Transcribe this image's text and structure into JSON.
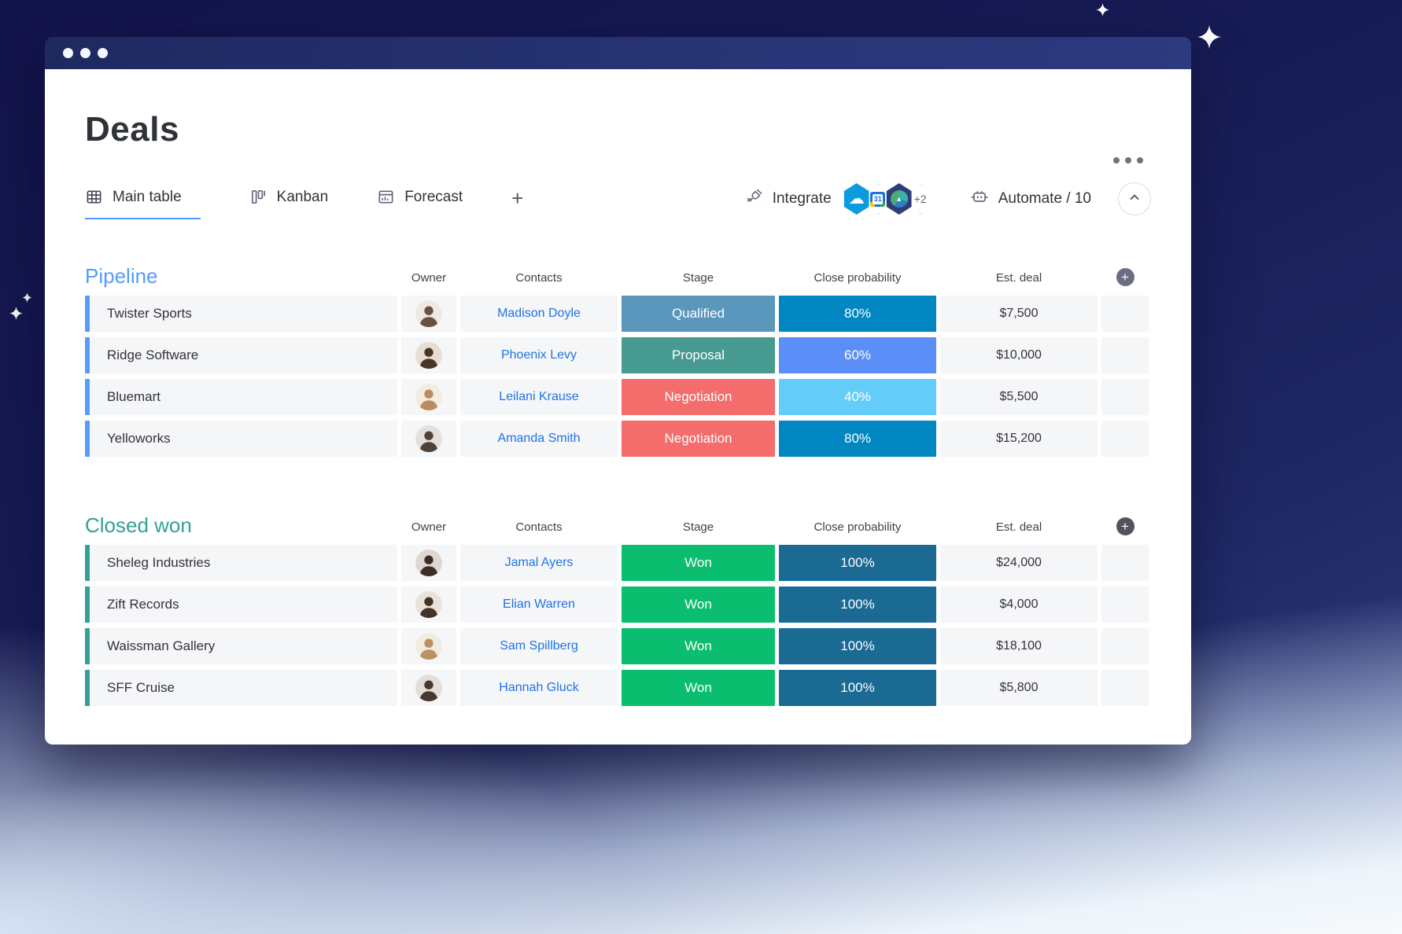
{
  "colors": {
    "accent": "#4c9aff",
    "link": "#1f74e4"
  },
  "header": {
    "title": "Deals"
  },
  "tabs": {
    "items": [
      {
        "label": "Main table",
        "icon": "table-icon",
        "active": true
      },
      {
        "label": "Kanban",
        "icon": "kanban-icon",
        "active": false
      },
      {
        "label": "Forecast",
        "icon": "forecast-icon",
        "active": false
      }
    ],
    "add_label": "+"
  },
  "toolbar": {
    "integrate_label": "Integrate",
    "integrations_more": "+2",
    "automate_label": "Automate / 10"
  },
  "table": {
    "columns": [
      "Owner",
      "Contacts",
      "Stage",
      "Close probability",
      "Est. deal"
    ]
  },
  "groups": [
    {
      "title": "Pipeline",
      "color": "#579bfc",
      "add_button_color": "#6b6e80",
      "rows": [
        {
          "name": "Twister Sports",
          "contact": "Madison Doyle",
          "stage": "Qualified",
          "stage_color": "#5b96bc",
          "probability": "80%",
          "probability_color": "#0086c0",
          "est_deal": "$7,500",
          "avatar": {
            "bg": "#efe9e4",
            "person": "#6b4f41"
          }
        },
        {
          "name": "Ridge Software",
          "contact": "Phoenix Levy",
          "stage": "Proposal",
          "stage_color": "#479a8f",
          "probability": "60%",
          "probability_color": "#5b8ff7",
          "est_deal": "$10,000",
          "avatar": {
            "bg": "#e8ddd3",
            "person": "#4a3628"
          }
        },
        {
          "name": "Bluemart",
          "contact": "Leilani Krause",
          "stage": "Negotiation",
          "stage_color": "#f46c6c",
          "probability": "40%",
          "probability_color": "#64ccf9",
          "est_deal": "$5,500",
          "avatar": {
            "bg": "#f3ece1",
            "person": "#b98d5f"
          }
        },
        {
          "name": "Yelloworks",
          "contact": "Amanda Smith",
          "stage": "Negotiation",
          "stage_color": "#f46c6c",
          "probability": "80%",
          "probability_color": "#0086c0",
          "est_deal": "$15,200",
          "avatar": {
            "bg": "#e5e0da",
            "person": "#4f4137"
          }
        }
      ]
    },
    {
      "title": "Closed won",
      "color": "#33a195",
      "add_button_color": "#51535d",
      "rows": [
        {
          "name": "Sheleg Industries",
          "contact": "Jamal Ayers",
          "stage": "Won",
          "stage_color": "#0bbd6e",
          "probability": "100%",
          "probability_color": "#1b6a94",
          "est_deal": "$24,000",
          "avatar": {
            "bg": "#ded8d0",
            "person": "#3c2e26"
          }
        },
        {
          "name": "Zift Records",
          "contact": "Elian Warren",
          "stage": "Won",
          "stage_color": "#0bbd6e",
          "probability": "100%",
          "probability_color": "#1b6a94",
          "est_deal": "$4,000",
          "avatar": {
            "bg": "#eae2d9",
            "person": "#41322a"
          }
        },
        {
          "name": "Waissman Gallery",
          "contact": "Sam Spillberg",
          "stage": "Won",
          "stage_color": "#0bbd6e",
          "probability": "100%",
          "probability_color": "#1b6a94",
          "est_deal": "$18,100",
          "avatar": {
            "bg": "#f2ebe0",
            "person": "#bb9164"
          }
        },
        {
          "name": "SFF Cruise",
          "contact": "Hannah Gluck",
          "stage": "Won",
          "stage_color": "#0bbd6e",
          "probability": "100%",
          "probability_color": "#1b6a94",
          "est_deal": "$5,800",
          "avatar": {
            "bg": "#e3ded8",
            "person": "#453931"
          }
        }
      ]
    }
  ]
}
